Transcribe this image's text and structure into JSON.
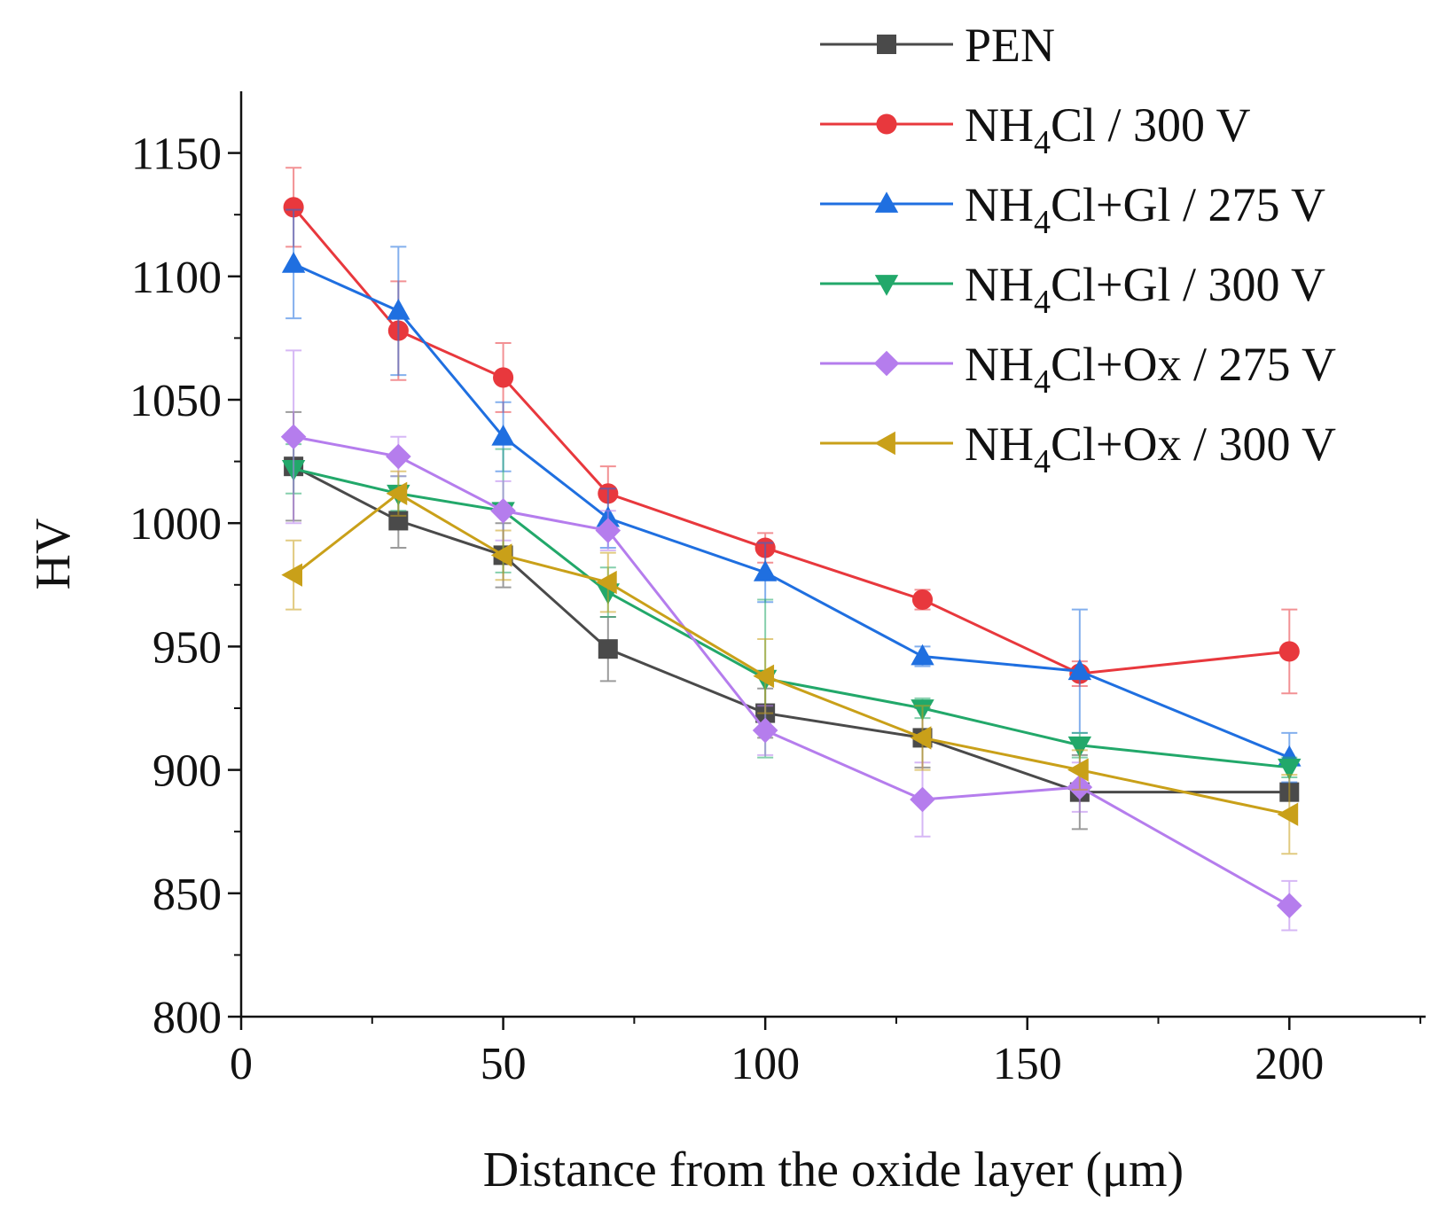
{
  "chart_data": {
    "type": "line",
    "title": "",
    "xlabel": "Distance from the oxide layer (μm)",
    "ylabel": "HV",
    "xlim": [
      0,
      226
    ],
    "ylim": [
      800,
      1175
    ],
    "xticks": [
      0,
      50,
      100,
      150,
      200
    ],
    "yticks": [
      800,
      850,
      900,
      950,
      1000,
      1050,
      1100,
      1150
    ],
    "x": [
      10,
      30,
      50,
      70,
      100,
      130,
      160,
      200
    ],
    "legend_position": "top-right",
    "series": [
      {
        "name": "PEN",
        "legend": {
          "base": "PEN",
          "sub": "",
          "rest": ""
        },
        "color": "#4a4a4a",
        "marker": "square",
        "values": [
          1023,
          1001,
          987,
          949,
          923,
          913,
          891,
          891
        ],
        "errors": [
          22,
          11,
          13,
          13,
          10,
          12,
          15,
          0
        ]
      },
      {
        "name": "NH4Cl / 300 V",
        "legend": {
          "base": "NH",
          "sub": "4",
          "rest": "Cl / 300 V"
        },
        "color": "#e8383d",
        "marker": "circle",
        "values": [
          1128,
          1078,
          1059,
          1012,
          990,
          969,
          939,
          948
        ],
        "errors": [
          16,
          20,
          14,
          11,
          6,
          4,
          5,
          17
        ]
      },
      {
        "name": "NH4Cl+Gl / 275 V",
        "legend": {
          "base": "NH",
          "sub": "4",
          "rest": "Cl+Gl / 275 V"
        },
        "color": "#1f6fe0",
        "marker": "triangle-up",
        "values": [
          1105,
          1086,
          1035,
          1002,
          980,
          946,
          940,
          905
        ],
        "errors": [
          22,
          26,
          14,
          12,
          12,
          4,
          25,
          10
        ]
      },
      {
        "name": "NH4Cl+Gl / 300 V",
        "legend": {
          "base": "NH",
          "sub": "4",
          "rest": "Cl+Gl / 300 V"
        },
        "color": "#22a86a",
        "marker": "triangle-down",
        "values": [
          1022,
          1012,
          1005,
          972,
          937,
          925,
          910,
          901
        ],
        "errors": [
          10,
          7,
          25,
          10,
          32,
          4,
          5,
          4
        ]
      },
      {
        "name": "NH4Cl+Ox / 275 V",
        "legend": {
          "base": "NH",
          "sub": "4",
          "rest": "Cl+Ox / 275 V"
        },
        "color": "#b57ded",
        "marker": "diamond",
        "values": [
          1035,
          1027,
          1005,
          997,
          916,
          888,
          893,
          845
        ],
        "errors": [
          35,
          8,
          12,
          8,
          10,
          15,
          10,
          10
        ]
      },
      {
        "name": "NH4Cl+Ox / 300 V",
        "legend": {
          "base": "NH",
          "sub": "4",
          "rest": "Cl+Ox / 300 V"
        },
        "color": "#c9a019",
        "marker": "triangle-left",
        "values": [
          979,
          1012,
          987,
          976,
          938,
          913,
          900,
          882
        ],
        "errors": [
          14,
          9,
          10,
          12,
          15,
          13,
          8,
          16
        ]
      }
    ]
  }
}
